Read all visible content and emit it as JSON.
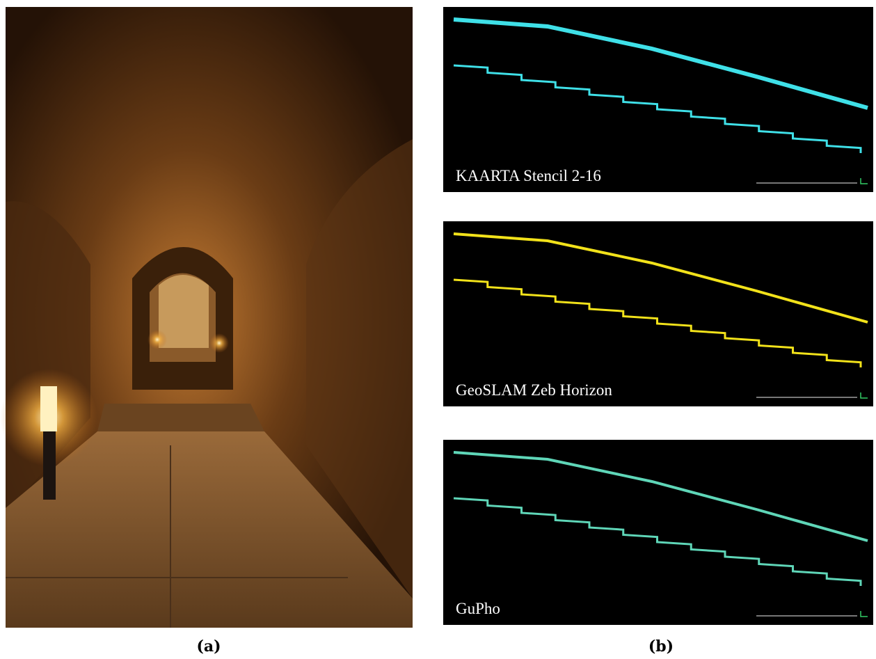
{
  "figure": {
    "panel_a": {
      "caption": "(a)"
    },
    "panel_b": {
      "caption": "(b)",
      "scans": [
        {
          "label": "KAARTA Stencil 2-16",
          "color": "#3fe0e8"
        },
        {
          "label": "GeoSLAM Zeb Horizon",
          "color": "#f2e21a"
        },
        {
          "label": "GuPho",
          "color": "#5fd6b8"
        }
      ]
    }
  }
}
